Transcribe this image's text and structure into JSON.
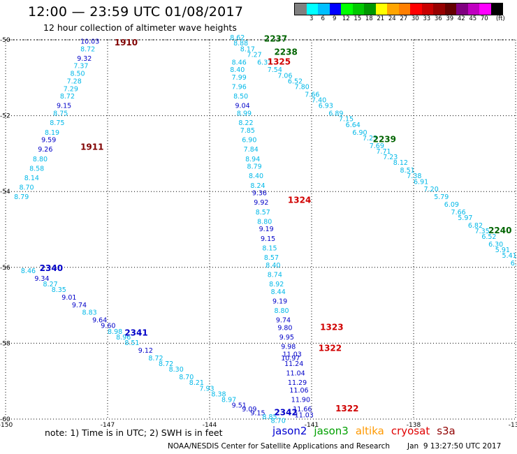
{
  "title": "12:00 — 23:59 UTC 01/08/2017",
  "subtitle": "12 hour collection of altimeter wave heights",
  "colorbar": {
    "unit": "(ft)",
    "colors": [
      "#808080",
      "#00ffff",
      "#00bfff",
      "#0000ff",
      "#00ff00",
      "#00c800",
      "#009600",
      "#ffff00",
      "#ffa500",
      "#ff7f00",
      "#ff0000",
      "#c80000",
      "#960000",
      "#640000",
      "#800080",
      "#c000c0",
      "#ff00ff",
      "#000000"
    ],
    "labels": [
      "3",
      "6",
      "9",
      "12",
      "15",
      "18",
      "21",
      "24",
      "27",
      "30",
      "33",
      "36",
      "39",
      "42",
      "45",
      "70"
    ]
  },
  "axes": {
    "lon_ticks": [
      "-150",
      "-147",
      "-144",
      "-141",
      "-138",
      "-135"
    ],
    "lat_ticks": [
      "-50",
      "-52",
      "-54",
      "-56",
      "-58",
      "-60"
    ],
    "lon_range": [
      -150,
      -135
    ],
    "lat_range": [
      -50,
      -60
    ],
    "grid": true
  },
  "tracks": [
    {
      "name": "track-1910",
      "times": [
        {
          "label": "1910",
          "color": "#800000",
          "lon": -146.8,
          "lat": -50.15
        },
        {
          "label": "1911",
          "color": "#800000",
          "lon": -147.8,
          "lat": -52.9
        }
      ],
      "points": [
        {
          "v": "10.03",
          "lon": -147.8,
          "lat": -50.1
        },
        {
          "v": "8.72",
          "lon": -147.8,
          "lat": -50.3
        },
        {
          "v": "9.32",
          "lon": -147.9,
          "lat": -50.55
        },
        {
          "v": "7.37",
          "lon": -148.0,
          "lat": -50.75
        },
        {
          "v": "8.50",
          "lon": -148.1,
          "lat": -50.95
        },
        {
          "v": "7.28",
          "lon": -148.2,
          "lat": -51.15
        },
        {
          "v": "7.29",
          "lon": -148.3,
          "lat": -51.35
        },
        {
          "v": "8.72",
          "lon": -148.4,
          "lat": -51.55
        },
        {
          "v": "9.15",
          "lon": -148.5,
          "lat": -51.8
        },
        {
          "v": "8.75",
          "lon": -148.6,
          "lat": -52.0
        },
        {
          "v": "8.75",
          "lon": -148.7,
          "lat": -52.25
        },
        {
          "v": "8.19",
          "lon": -148.85,
          "lat": -52.5
        },
        {
          "v": "9.59",
          "lon": -148.95,
          "lat": -52.7
        },
        {
          "v": "9.26",
          "lon": -149.05,
          "lat": -52.95
        },
        {
          "v": "8.80",
          "lon": -149.2,
          "lat": -53.2
        },
        {
          "v": "8.58",
          "lon": -149.3,
          "lat": -53.45
        },
        {
          "v": "8.14",
          "lon": -149.45,
          "lat": -53.7
        },
        {
          "v": "8.70",
          "lon": -149.6,
          "lat": -53.95
        },
        {
          "v": "8.79",
          "lon": -149.75,
          "lat": -54.2
        }
      ]
    },
    {
      "name": "track-2237",
      "times": [
        {
          "label": "2237",
          "color": "#006400",
          "lon": -142.4,
          "lat": -50.05
        },
        {
          "label": "2238",
          "color": "#006400",
          "lon": -142.1,
          "lat": -50.4
        },
        {
          "label": "2239",
          "color": "#006400",
          "lon": -139.2,
          "lat": -52.7
        },
        {
          "label": "2240",
          "color": "#006400",
          "lon": -135.8,
          "lat": -55.1
        }
      ],
      "points": [
        {
          "v": "8.62",
          "lon": -143.4,
          "lat": -50.0
        },
        {
          "v": "8.88",
          "lon": -143.3,
          "lat": -50.15
        },
        {
          "v": "8.17",
          "lon": -143.1,
          "lat": -50.3
        },
        {
          "v": "7.27",
          "lon": -142.9,
          "lat": -50.45
        },
        {
          "v": "6.31",
          "lon": -142.6,
          "lat": -50.65
        },
        {
          "v": "7.54",
          "lon": -142.3,
          "lat": -50.85
        },
        {
          "v": "7.06",
          "lon": -142.0,
          "lat": -51.0
        },
        {
          "v": "6.52",
          "lon": -141.7,
          "lat": -51.15
        },
        {
          "v": "7.80",
          "lon": -141.5,
          "lat": -51.3
        },
        {
          "v": "7.66",
          "lon": -141.2,
          "lat": -51.5
        },
        {
          "v": "7.40",
          "lon": -141.0,
          "lat": -51.65
        },
        {
          "v": "6.93",
          "lon": -140.8,
          "lat": -51.8
        },
        {
          "v": "6.89",
          "lon": -140.5,
          "lat": -52.0
        },
        {
          "v": "7.15",
          "lon": -140.2,
          "lat": -52.15
        },
        {
          "v": "6.64",
          "lon": -140.0,
          "lat": -52.3
        },
        {
          "v": "6.90",
          "lon": -139.8,
          "lat": -52.5
        },
        {
          "v": "7.23",
          "lon": -139.5,
          "lat": -52.65
        },
        {
          "v": "7.69",
          "lon": -139.3,
          "lat": -52.85
        },
        {
          "v": "7.71",
          "lon": -139.1,
          "lat": -53.0
        },
        {
          "v": "7.23",
          "lon": -138.9,
          "lat": -53.15
        },
        {
          "v": "8.12",
          "lon": -138.6,
          "lat": -53.3
        },
        {
          "v": "8.51",
          "lon": -138.4,
          "lat": -53.5
        },
        {
          "v": "7.38",
          "lon": -138.2,
          "lat": -53.65
        },
        {
          "v": "6.91",
          "lon": -138.0,
          "lat": -53.8
        },
        {
          "v": "7.20",
          "lon": -137.7,
          "lat": -54.0
        },
        {
          "v": "5.79",
          "lon": -137.4,
          "lat": -54.2
        },
        {
          "v": "6.09",
          "lon": -137.1,
          "lat": -54.4
        },
        {
          "v": "7.66",
          "lon": -136.9,
          "lat": -54.6
        },
        {
          "v": "5.97",
          "lon": -136.7,
          "lat": -54.75
        },
        {
          "v": "6.82",
          "lon": -136.4,
          "lat": -54.95
        },
        {
          "v": "7.35",
          "lon": -136.2,
          "lat": -55.1
        },
        {
          "v": "6.52",
          "lon": -136.0,
          "lat": -55.25
        },
        {
          "v": "6.30",
          "lon": -135.8,
          "lat": -55.45
        },
        {
          "v": "5.91",
          "lon": -135.6,
          "lat": -55.6
        },
        {
          "v": "5.41",
          "lon": -135.4,
          "lat": -55.75
        },
        {
          "v": "6.0",
          "lon": -135.15,
          "lat": -55.95
        }
      ]
    },
    {
      "name": "track-1325",
      "times": [
        {
          "label": "1325",
          "color": "#d00000",
          "lon": -142.3,
          "lat": -50.65
        },
        {
          "label": "1324",
          "color": "#d00000",
          "lon": -141.7,
          "lat": -54.3
        },
        {
          "label": "1323",
          "color": "#d00000",
          "lon": -140.75,
          "lat": -57.65
        },
        {
          "label": "1322",
          "color": "#d00000",
          "lon": -140.8,
          "lat": -58.2
        },
        {
          "label": "1322",
          "color": "#d00000",
          "lon": -140.3,
          "lat": -59.8
        }
      ],
      "points": [
        {
          "v": "8.46",
          "lon": -143.35,
          "lat": -50.65
        },
        {
          "v": "8.40",
          "lon": -143.4,
          "lat": -50.85
        },
        {
          "v": "7.99",
          "lon": -143.35,
          "lat": -51.05
        },
        {
          "v": "7.96",
          "lon": -143.35,
          "lat": -51.3
        },
        {
          "v": "8.50",
          "lon": -143.3,
          "lat": -51.55
        },
        {
          "v": "9.04",
          "lon": -143.25,
          "lat": -51.8
        },
        {
          "v": "8.99",
          "lon": -143.2,
          "lat": -52.0
        },
        {
          "v": "8.22",
          "lon": -143.15,
          "lat": -52.25
        },
        {
          "v": "7.85",
          "lon": -143.1,
          "lat": -52.45
        },
        {
          "v": "6.90",
          "lon": -143.05,
          "lat": -52.7
        },
        {
          "v": "7.84",
          "lon": -143.0,
          "lat": -52.95
        },
        {
          "v": "8.94",
          "lon": -142.95,
          "lat": -53.2
        },
        {
          "v": "8.79",
          "lon": -142.9,
          "lat": -53.4
        },
        {
          "v": "8.40",
          "lon": -142.85,
          "lat": -53.65
        },
        {
          "v": "8.24",
          "lon": -142.8,
          "lat": -53.9
        },
        {
          "v": "9.36",
          "lon": -142.75,
          "lat": -54.1
        },
        {
          "v": "9.92",
          "lon": -142.7,
          "lat": -54.35
        },
        {
          "v": "8.57",
          "lon": -142.65,
          "lat": -54.6
        },
        {
          "v": "8.80",
          "lon": -142.6,
          "lat": -54.85
        },
        {
          "v": "9.19",
          "lon": -142.55,
          "lat": -55.05
        },
        {
          "v": "9.15",
          "lon": -142.5,
          "lat": -55.3
        },
        {
          "v": "8.15",
          "lon": -142.45,
          "lat": -55.55
        },
        {
          "v": "8.57",
          "lon": -142.4,
          "lat": -55.8
        },
        {
          "v": "8.40",
          "lon": -142.35,
          "lat": -56.0
        },
        {
          "v": "8.74",
          "lon": -142.3,
          "lat": -56.25
        },
        {
          "v": "8.92",
          "lon": -142.25,
          "lat": -56.5
        },
        {
          "v": "8.44",
          "lon": -142.2,
          "lat": -56.7
        },
        {
          "v": "9.19",
          "lon": -142.15,
          "lat": -56.95
        },
        {
          "v": "8.80",
          "lon": -142.1,
          "lat": -57.2
        },
        {
          "v": "9.74",
          "lon": -142.05,
          "lat": -57.45
        },
        {
          "v": "9.80",
          "lon": -142.0,
          "lat": -57.65
        },
        {
          "v": "9.95",
          "lon": -141.95,
          "lat": -57.9
        },
        {
          "v": "9.98",
          "lon": -141.9,
          "lat": -58.15
        },
        {
          "v": "11.03",
          "lon": -141.85,
          "lat": -58.35
        },
        {
          "v": "10.97",
          "lon": -141.9,
          "lat": -58.45
        },
        {
          "v": "11.24",
          "lon": -141.8,
          "lat": -58.6
        },
        {
          "v": "11.04",
          "lon": -141.75,
          "lat": -58.85
        },
        {
          "v": "11.29",
          "lon": -141.7,
          "lat": -59.1
        },
        {
          "v": "11.06",
          "lon": -141.65,
          "lat": -59.3
        },
        {
          "v": "11.90",
          "lon": -141.6,
          "lat": -59.55
        },
        {
          "v": "11.66",
          "lon": -141.55,
          "lat": -59.8
        },
        {
          "v": "11.03",
          "lon": -141.5,
          "lat": -59.95
        }
      ]
    },
    {
      "name": "track-2340",
      "times": [
        {
          "label": "2340",
          "color": "#0000c8",
          "lon": -149.0,
          "lat": -56.1
        },
        {
          "label": "2341",
          "color": "#0000c8",
          "lon": -146.5,
          "lat": -57.8
        },
        {
          "label": "2342",
          "color": "#0000c8",
          "lon": -142.1,
          "lat": -59.9
        }
      ],
      "points": [
        {
          "v": "8.46",
          "lon": -149.55,
          "lat": -56.15
        },
        {
          "v": "9.34",
          "lon": -149.15,
          "lat": -56.35
        },
        {
          "v": "8.27",
          "lon": -148.9,
          "lat": -56.5
        },
        {
          "v": "8.35",
          "lon": -148.65,
          "lat": -56.65
        },
        {
          "v": "9.01",
          "lon": -148.35,
          "lat": -56.85
        },
        {
          "v": "9.74",
          "lon": -148.05,
          "lat": -57.05
        },
        {
          "v": "8.83",
          "lon": -147.75,
          "lat": -57.25
        },
        {
          "v": "9.64",
          "lon": -147.45,
          "lat": -57.45
        },
        {
          "v": "9.60",
          "lon": -147.2,
          "lat": -57.6
        },
        {
          "v": "8.98",
          "lon": -147.0,
          "lat": -57.75
        },
        {
          "v": "8.96",
          "lon": -146.75,
          "lat": -57.9
        },
        {
          "v": "8.51",
          "lon": -146.5,
          "lat": -58.05
        },
        {
          "v": "9.12",
          "lon": -146.1,
          "lat": -58.25
        },
        {
          "v": "8.72",
          "lon": -145.8,
          "lat": -58.45
        },
        {
          "v": "8.72",
          "lon": -145.5,
          "lat": -58.6
        },
        {
          "v": "8.30",
          "lon": -145.2,
          "lat": -58.75
        },
        {
          "v": "8.70",
          "lon": -144.9,
          "lat": -58.95
        },
        {
          "v": "8.21",
          "lon": -144.6,
          "lat": -59.1
        },
        {
          "v": "7.93",
          "lon": -144.3,
          "lat": -59.25
        },
        {
          "v": "8.38",
          "lon": -143.95,
          "lat": -59.4
        },
        {
          "v": "8.97",
          "lon": -143.65,
          "lat": -59.55
        },
        {
          "v": "9.51",
          "lon": -143.35,
          "lat": -59.7
        },
        {
          "v": "9.09",
          "lon": -143.05,
          "lat": -59.8
        },
        {
          "v": "9.15",
          "lon": -142.8,
          "lat": -59.9
        },
        {
          "v": "8.85",
          "lon": -142.45,
          "lat": -60.0
        },
        {
          "v": "8.70",
          "lon": -142.2,
          "lat": -60.1
        }
      ]
    }
  ],
  "note": "note: 1) Time is in UTC; 2) SWH is in feet",
  "legend": [
    {
      "label": "jason2",
      "color": "#0000d0"
    },
    {
      "label": "jason3",
      "color": "#00a000"
    },
    {
      "label": "altika",
      "color": "#ff9900"
    },
    {
      "label": "cryosat",
      "color": "#e00000"
    },
    {
      "label": "s3a",
      "color": "#900000"
    }
  ],
  "credit": "NOAA/NESDIS Center for Satellite Applications and Research",
  "timestamp": "Jan  9 13:27:50 UTC 2017"
}
